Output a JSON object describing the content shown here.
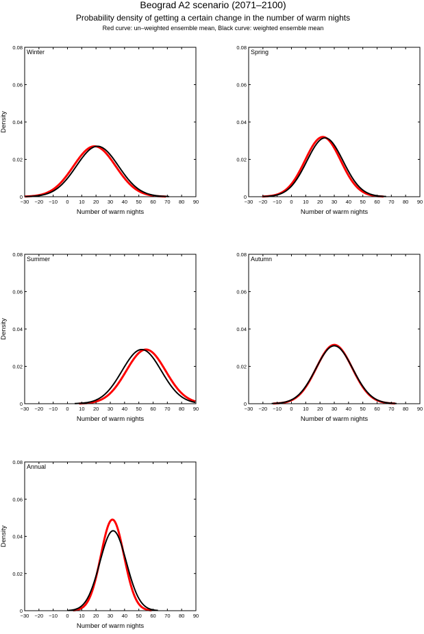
{
  "title": "Beograd A2 scenario (2071–2100)",
  "subtitle": "Probability density of getting a certain change in the number of warm nights",
  "caption": "Red curve: un–weighted ensemble mean, Black curve: weighted ensemble mean",
  "colors": {
    "unweighted": "#ff0000",
    "weighted": "#000000"
  },
  "chart_data": [
    {
      "type": "line",
      "panel_label": "Winter",
      "xlabel": "Number of warm nights",
      "ylabel": "Density",
      "xlim": [
        -30,
        90
      ],
      "ylim": [
        0,
        0.08
      ],
      "xticks": [
        "-30",
        "-20",
        "-10",
        "0",
        "10",
        "20",
        "30",
        "40",
        "50",
        "60",
        "70",
        "80",
        "90"
      ],
      "yticks": [
        "0",
        "0.02",
        "0.04",
        "0.06",
        "0.08"
      ],
      "series": [
        {
          "name": "un-weighted ensemble mean",
          "color": "red",
          "mean": 19,
          "sd": 14.8,
          "peak": 0.027
        },
        {
          "name": "weighted ensemble mean",
          "color": "black",
          "mean": 21,
          "sd": 14.8,
          "peak": 0.027
        }
      ]
    },
    {
      "type": "line",
      "panel_label": "Spring",
      "xlabel": "Number of warm nights",
      "ylabel": "",
      "xlim": [
        -30,
        90
      ],
      "ylim": [
        0,
        0.08
      ],
      "xticks": [
        "-30",
        "-20",
        "-10",
        "0",
        "10",
        "20",
        "30",
        "40",
        "50",
        "60",
        "70",
        "80",
        "90"
      ],
      "yticks": [
        "0",
        "0.02",
        "0.04",
        "0.06",
        "0.08"
      ],
      "series": [
        {
          "name": "un-weighted ensemble mean",
          "color": "red",
          "mean": 22,
          "sd": 12.5,
          "peak": 0.032
        },
        {
          "name": "weighted ensemble mean",
          "color": "black",
          "mean": 23.5,
          "sd": 12.7,
          "peak": 0.0315
        }
      ]
    },
    {
      "type": "line",
      "panel_label": "Summer",
      "xlabel": "Number of warm nights",
      "ylabel": "Density",
      "xlim": [
        -30,
        90
      ],
      "ylim": [
        0,
        0.08
      ],
      "xticks": [
        "-30",
        "-20",
        "-10",
        "0",
        "10",
        "20",
        "30",
        "40",
        "50",
        "60",
        "70",
        "80",
        "90"
      ],
      "yticks": [
        "0",
        "0.02",
        "0.04",
        "0.06",
        "0.08"
      ],
      "series": [
        {
          "name": "un-weighted ensemble mean",
          "color": "red",
          "mean": 55,
          "sd": 13.8,
          "peak": 0.029
        },
        {
          "name": "weighted ensemble mean",
          "color": "black",
          "mean": 52,
          "sd": 13.8,
          "peak": 0.029
        }
      ]
    },
    {
      "type": "line",
      "panel_label": "Autumn",
      "xlabel": "Number of warm nights",
      "ylabel": "",
      "xlim": [
        -30,
        90
      ],
      "ylim": [
        0,
        0.08
      ],
      "xticks": [
        "-30",
        "-20",
        "-10",
        "0",
        "10",
        "20",
        "30",
        "40",
        "50",
        "60",
        "70",
        "80",
        "90"
      ],
      "yticks": [
        "0",
        "0.02",
        "0.04",
        "0.06",
        "0.08"
      ],
      "series": [
        {
          "name": "un-weighted ensemble mean",
          "color": "red",
          "mean": 30,
          "sd": 12.6,
          "peak": 0.0315
        },
        {
          "name": "weighted ensemble mean",
          "color": "black",
          "mean": 30,
          "sd": 12.9,
          "peak": 0.031
        }
      ]
    },
    {
      "type": "line",
      "panel_label": "Annual",
      "xlabel": "Number of warm nights",
      "ylabel": "Density",
      "xlim": [
        -30,
        90
      ],
      "ylim": [
        0,
        0.08
      ],
      "xticks": [
        "-30",
        "-20",
        "-10",
        "0",
        "10",
        "20",
        "30",
        "40",
        "50",
        "60",
        "70",
        "80",
        "90"
      ],
      "yticks": [
        "0",
        "0.02",
        "0.04",
        "0.06",
        "0.08"
      ],
      "series": [
        {
          "name": "un-weighted ensemble mean",
          "color": "red",
          "mean": 31.5,
          "sd": 8.1,
          "peak": 0.049
        },
        {
          "name": "weighted ensemble mean",
          "color": "black",
          "mean": 32,
          "sd": 9.3,
          "peak": 0.043
        }
      ]
    }
  ]
}
